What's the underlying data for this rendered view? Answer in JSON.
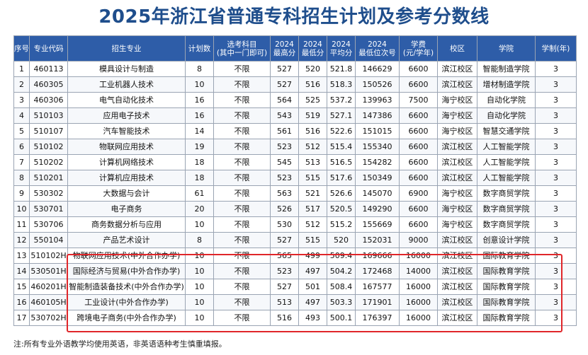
{
  "title": "2025年浙江省普通专科招生计划及参考分数线",
  "headers": {
    "seq": "序号",
    "code": "专业代码",
    "major": "招生专业",
    "plan": "计划数",
    "subject_l1": "选考科目",
    "subject_l2": "(其中一门即可)",
    "max_l1": "2024",
    "max_l2": "最高分",
    "min_l1": "2024",
    "min_l2": "最低分",
    "avg_l1": "2024",
    "avg_l2": "平均分",
    "rank_l1": "2024",
    "rank_l2": "最低位次号",
    "fee_l1": "学费",
    "fee_l2": "(元/学年)",
    "campus": "校区",
    "college": "学院",
    "years": "学制(年)"
  },
  "rows": [
    {
      "seq": "1",
      "code": "460113",
      "major": "模具设计与制造",
      "plan": "8",
      "subject": "不限",
      "max": "527",
      "min": "520",
      "avg": "521.8",
      "rank": "146629",
      "fee": "6600",
      "campus": "滨江校区",
      "college": "智能制造学院",
      "years": "3"
    },
    {
      "seq": "2",
      "code": "460305",
      "major": "工业机器人技术",
      "plan": "10",
      "subject": "不限",
      "max": "527",
      "min": "516",
      "avg": "518.3",
      "rank": "150526",
      "fee": "6600",
      "campus": "滨江校区",
      "college": "增材制造学院",
      "years": "3"
    },
    {
      "seq": "3",
      "code": "460306",
      "major": "电气自动化技术",
      "plan": "16",
      "subject": "不限",
      "max": "564",
      "min": "525",
      "avg": "537.2",
      "rank": "139963",
      "fee": "7500",
      "campus": "海宁校区",
      "college": "自动化学院",
      "years": "3"
    },
    {
      "seq": "4",
      "code": "510103",
      "major": "应用电子技术",
      "plan": "16",
      "subject": "不限",
      "max": "543",
      "min": "519",
      "avg": "527.1",
      "rank": "147386",
      "fee": "6600",
      "campus": "海宁校区",
      "college": "自动化学院",
      "years": "3"
    },
    {
      "seq": "5",
      "code": "510107",
      "major": "汽车智能技术",
      "plan": "14",
      "subject": "不限",
      "max": "561",
      "min": "516",
      "avg": "522.6",
      "rank": "151015",
      "fee": "6600",
      "campus": "海宁校区",
      "college": "智慧交通学院",
      "years": "3"
    },
    {
      "seq": "6",
      "code": "510102",
      "major": "物联网应用技术",
      "plan": "19",
      "subject": "不限",
      "max": "523",
      "min": "512",
      "avg": "515.4",
      "rank": "155340",
      "fee": "6600",
      "campus": "滨江校区",
      "college": "人工智能学院",
      "years": "3"
    },
    {
      "seq": "7",
      "code": "510202",
      "major": "计算机网络技术",
      "plan": "18",
      "subject": "不限",
      "max": "545",
      "min": "513",
      "avg": "516.5",
      "rank": "154282",
      "fee": "6600",
      "campus": "滨江校区",
      "college": "人工智能学院",
      "years": "3"
    },
    {
      "seq": "8",
      "code": "510201",
      "major": "计算机应用技术",
      "plan": "18",
      "subject": "不限",
      "max": "523",
      "min": "515",
      "avg": "517.6",
      "rank": "150349",
      "fee": "6600",
      "campus": "滨江校区",
      "college": "人工智能学院",
      "years": "3"
    },
    {
      "seq": "9",
      "code": "530302",
      "major": "大数据与会计",
      "plan": "61",
      "subject": "不限",
      "max": "563",
      "min": "521",
      "avg": "526.6",
      "rank": "145070",
      "fee": "6900",
      "campus": "海宁校区",
      "college": "数字商贸学院",
      "years": "3"
    },
    {
      "seq": "10",
      "code": "530701",
      "major": "电子商务",
      "plan": "20",
      "subject": "不限",
      "max": "526",
      "min": "517",
      "avg": "520.5",
      "rank": "149290",
      "fee": "6600",
      "campus": "海宁校区",
      "college": "数字商贸学院",
      "years": "3"
    },
    {
      "seq": "11",
      "code": "530706",
      "major": "商务数据分析与应用",
      "plan": "10",
      "subject": "不限",
      "max": "530",
      "min": "512",
      "avg": "515.2",
      "rank": "155669",
      "fee": "6600",
      "campus": "海宁校区",
      "college": "数字商贸学院",
      "years": "3"
    },
    {
      "seq": "12",
      "code": "550104",
      "major": "产品艺术设计",
      "plan": "8",
      "subject": "不限",
      "max": "527",
      "min": "515",
      "avg": "520",
      "rank": "152031",
      "fee": "9000",
      "campus": "滨江校区",
      "college": "创意设计学院",
      "years": "3"
    },
    {
      "seq": "13",
      "code": "510102H",
      "major": "物联网应用技术(中外合作办学)",
      "plan": "10",
      "subject": "不限",
      "max": "565",
      "min": "499",
      "avg": "509.4",
      "rank": "169666",
      "fee": "16000",
      "campus": "滨江校区",
      "college": "国际教育学院",
      "years": "3"
    },
    {
      "seq": "14",
      "code": "530501H",
      "major": "国际经济与贸易(中外合作办学)",
      "plan": "10",
      "subject": "不限",
      "max": "523",
      "min": "497",
      "avg": "504.2",
      "rank": "172468",
      "fee": "14000",
      "campus": "滨江校区",
      "college": "国际教育学院",
      "years": "3"
    },
    {
      "seq": "15",
      "code": "460201H",
      "major": "智能制造装备技术(中外合作办学)",
      "plan": "10",
      "subject": "不限",
      "max": "527",
      "min": "501",
      "avg": "508.4",
      "rank": "167577",
      "fee": "16000",
      "campus": "滨江校区",
      "college": "国际教育学院",
      "years": "3"
    },
    {
      "seq": "16",
      "code": "460105H",
      "major": "工业设计(中外合作办学)",
      "plan": "10",
      "subject": "不限",
      "max": "513",
      "min": "497",
      "avg": "503.3",
      "rank": "171901",
      "fee": "16000",
      "campus": "滨江校区",
      "college": "国际教育学院",
      "years": "3"
    },
    {
      "seq": "17",
      "code": "530702H",
      "major": "跨境电子商务(中外合作办学)",
      "plan": "10",
      "subject": "不限",
      "max": "516",
      "min": "493",
      "avg": "500.1",
      "rank": "176397",
      "fee": "16000",
      "campus": "滨江校区",
      "college": "国际教育学院",
      "years": "3"
    }
  ],
  "footnote": "注:所有专业外语教学均使用英语，非英语语种考生慎重填报。",
  "colors": {
    "header_bg": "#2e5da8",
    "title": "#1f4e8c",
    "highlight_border": "#e0262a"
  }
}
